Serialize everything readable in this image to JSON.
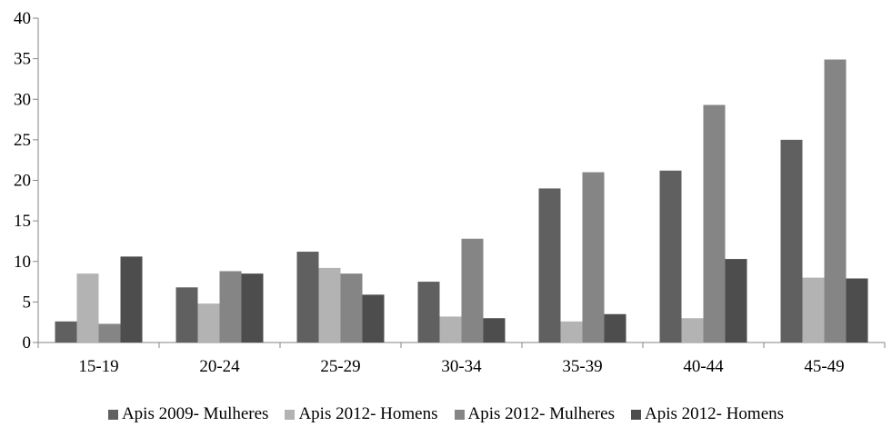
{
  "chart_data": {
    "type": "bar",
    "categories": [
      "15-19",
      "20-24",
      "25-29",
      "30-34",
      "35-39",
      "40-44",
      "45-49"
    ],
    "series": [
      {
        "name": "Apis 2009- Mulheres",
        "color": "#606060",
        "values": [
          2.6,
          6.8,
          11.2,
          7.5,
          19.0,
          21.2,
          25.0
        ]
      },
      {
        "name": "Apis 2012- Homens",
        "color": "#b3b3b3",
        "values": [
          8.5,
          4.8,
          9.2,
          3.2,
          2.6,
          3.0,
          8.0
        ]
      },
      {
        "name": "Apis 2012- Mulheres",
        "color": "#858585",
        "values": [
          2.3,
          8.8,
          8.5,
          12.8,
          21.0,
          29.3,
          34.9
        ]
      },
      {
        "name": "Apis 2012- Homens",
        "color": "#4d4d4d",
        "values": [
          10.6,
          8.5,
          5.9,
          3.0,
          3.5,
          10.3,
          7.9
        ]
      }
    ],
    "yticks": [
      "0",
      "5",
      "10",
      "15",
      "20",
      "25",
      "30",
      "35",
      "40"
    ],
    "ylim": [
      0,
      40
    ],
    "grid": false,
    "legend_position": "bottom"
  }
}
